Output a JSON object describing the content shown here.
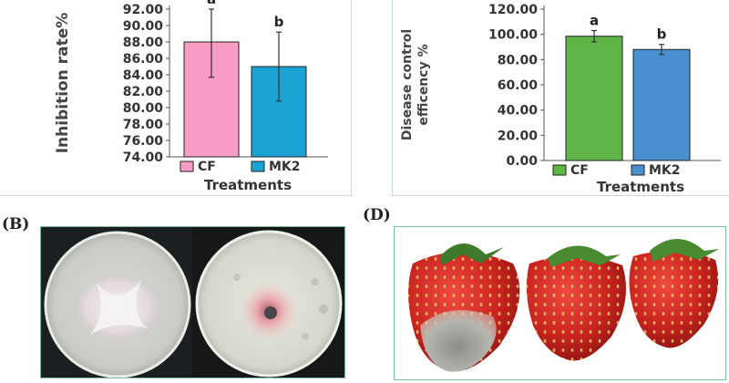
{
  "panel_labels": {
    "b": "(B)",
    "d": "(D)"
  },
  "colors": {
    "cf_a": "#f79cc4",
    "mk2_a": "#1aa3d4",
    "cf_c": "#5fb446",
    "mk2_c": "#4a90d0",
    "axis": "#555555",
    "text": "#333333"
  },
  "chart_data": [
    {
      "type": "bar",
      "categories": [
        "CF",
        "MK2"
      ],
      "values": [
        88.0,
        85.0
      ],
      "errors": [
        4.3,
        4.2
      ],
      "letters": [
        "a",
        "b"
      ],
      "ylabel": "Inhibition rate%",
      "xlabel": "Treatments",
      "ylim": [
        74.0,
        92.0
      ],
      "yticks": [
        "74.00",
        "76.00",
        "78.00",
        "80.00",
        "82.00",
        "84.00",
        "86.00",
        "88.00",
        "90.00",
        "92.00"
      ],
      "legend": [
        "CF",
        "MK2"
      ],
      "legend_placement": "bottom"
    },
    {
      "type": "bar",
      "categories": [
        "CF",
        "MK2"
      ],
      "values": [
        98.5,
        88.0
      ],
      "errors": [
        4.5,
        4.0
      ],
      "letters": [
        "a",
        "b"
      ],
      "ylabel_lines": [
        "Disease control",
        "efficency %"
      ],
      "xlabel": "Treatments",
      "ylim": [
        0.0,
        120.0
      ],
      "yticks": [
        "0.00",
        "20.00",
        "40.00",
        "60.00",
        "80.00",
        "100.00",
        "120.00"
      ],
      "legend": [
        "CF",
        "MK2"
      ],
      "legend_placement": "bottom"
    }
  ]
}
